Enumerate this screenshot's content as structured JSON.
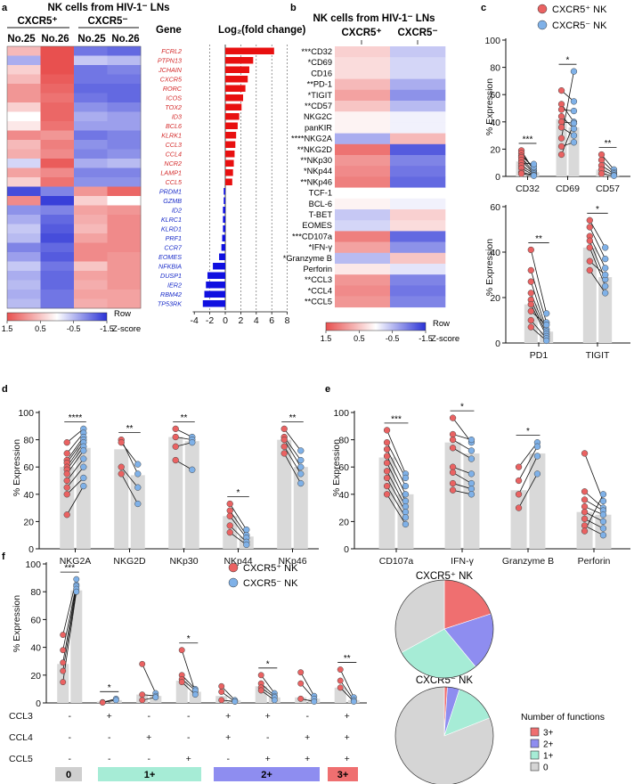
{
  "colors": {
    "red": "#e8504f",
    "blue": "#2a32d6",
    "dot_red": "#ea6262",
    "dot_blue": "#7fb1e8",
    "bar": "#d9d9d9",
    "f3": "#ef6f70",
    "f2": "#8e8df0",
    "f1": "#a6ecd6",
    "f0": "#d5d5d5"
  },
  "panel_a": {
    "label": "a",
    "title": "NK cells from HIV-1⁻ LNs",
    "groups": [
      "CXCR5⁺",
      "CXCR5⁻"
    ],
    "samples": [
      "No.25",
      "No.26",
      "No.25",
      "No.26"
    ],
    "gene_header": "Gene",
    "fc_header": "Log₂(fold change)",
    "genes": [
      "FCRL2",
      "PTPN13",
      "JCHAIN",
      "CXCR5",
      "RORC",
      "ICOS",
      "TOX2",
      "ID3",
      "BCL6",
      "KLRK1",
      "CCL3",
      "CCL4",
      "NCR2",
      "LAMP1",
      "CCL5",
      "PRDM1",
      "GZMB",
      "ID2",
      "KLRC1",
      "KLRD1",
      "PRF1",
      "CCR7",
      "EOMES",
      "NFKBIA",
      "DUSP1",
      "IER2",
      "RBM42",
      "TP53RK"
    ],
    "heatmap": [
      [
        0.6,
        1.5,
        -1.0,
        -1.1
      ],
      [
        -0.6,
        1.5,
        -0.4,
        -0.5
      ],
      [
        0.4,
        1.5,
        -1.0,
        -0.9
      ],
      [
        0.6,
        1.4,
        -1.0,
        -1.0
      ],
      [
        0.9,
        1.3,
        -1.1,
        -1.1
      ],
      [
        0.9,
        1.2,
        -1.0,
        -1.1
      ],
      [
        0.4,
        1.3,
        -0.8,
        -0.9
      ],
      [
        0.0,
        1.3,
        -0.6,
        -0.7
      ],
      [
        0.2,
        1.2,
        -0.7,
        -0.7
      ],
      [
        1.0,
        0.9,
        -1.0,
        -0.9
      ],
      [
        0.6,
        1.1,
        -0.8,
        -0.9
      ],
      [
        0.7,
        1.0,
        -0.9,
        -0.8
      ],
      [
        -0.3,
        1.4,
        -0.6,
        -0.5
      ],
      [
        0.8,
        1.0,
        -0.9,
        -0.9
      ],
      [
        0.4,
        1.2,
        -0.8,
        -0.8
      ],
      [
        -1.3,
        -0.9,
        0.9,
        1.3
      ],
      [
        1.0,
        -1.4,
        0.4,
        0.0
      ],
      [
        -0.8,
        -0.9,
        0.8,
        0.9
      ],
      [
        -0.6,
        -1.1,
        0.7,
        1.0
      ],
      [
        -0.4,
        -1.2,
        0.6,
        1.0
      ],
      [
        -0.5,
        -1.3,
        0.8,
        1.0
      ],
      [
        -0.9,
        -1.1,
        1.0,
        1.0
      ],
      [
        -0.7,
        -1.2,
        1.0,
        0.9
      ],
      [
        -0.4,
        -1.0,
        0.5,
        0.9
      ],
      [
        -0.6,
        -1.1,
        0.8,
        0.9
      ],
      [
        -0.5,
        -1.1,
        0.7,
        0.9
      ],
      [
        -0.6,
        -1.0,
        0.8,
        0.8
      ],
      [
        -0.5,
        -1.0,
        0.7,
        0.8
      ]
    ],
    "log2fc": [
      6.3,
      3.6,
      3.1,
      2.9,
      2.6,
      2.3,
      2.1,
      1.8,
      1.6,
      1.4,
      1.3,
      1.2,
      1.1,
      1.0,
      0.9,
      -0.2,
      -0.2,
      -0.3,
      -0.3,
      -0.3,
      -0.4,
      -0.5,
      -0.8,
      -1.6,
      -2.3,
      -2.5,
      -2.7,
      -2.9
    ],
    "axis_ticks": [
      "-4",
      "-2",
      "0",
      "2",
      "4",
      "6",
      "8"
    ],
    "legend_ticks": [
      "1.5",
      "0.5",
      "-0.5",
      "-1.5"
    ],
    "legend_label": [
      "Row",
      "Z-score"
    ]
  },
  "panel_b": {
    "label": "b",
    "title": "NK cells from HIV-1⁻ LNs",
    "groups": [
      "CXCR5⁺",
      "CXCR5⁻"
    ],
    "markers": [
      "***CD32",
      "*CD69",
      "CD16",
      "**PD-1",
      "*TIGIT",
      "**CD57",
      "NKG2C",
      "panKIR",
      "****NKG2A",
      "**NKG2D",
      "**NKp30",
      "*NKp44",
      "**NKp46",
      "TCF-1",
      "BCL-6",
      "T-BET",
      "EOMES",
      "***CD107a",
      "*IFN-γ",
      "*Granzyme B",
      "Perforin",
      "**CCL3",
      "*CCL4",
      "**CCL5"
    ],
    "heatmap": [
      [
        0.4,
        -0.4
      ],
      [
        0.3,
        -0.3
      ],
      [
        0.3,
        -0.3
      ],
      [
        0.6,
        -0.6
      ],
      [
        0.8,
        -0.8
      ],
      [
        0.5,
        -0.5
      ],
      [
        0.1,
        -0.1
      ],
      [
        0.1,
        -0.1
      ],
      [
        -0.6,
        0.6
      ],
      [
        1.2,
        -1.2
      ],
      [
        0.9,
        -0.9
      ],
      [
        1.0,
        -1.0
      ],
      [
        1.1,
        -1.1
      ],
      [
        0.0,
        0.0
      ],
      [
        0.1,
        -0.1
      ],
      [
        -0.4,
        0.4
      ],
      [
        -0.3,
        0.3
      ],
      [
        1.1,
        -1.1
      ],
      [
        0.8,
        -0.8
      ],
      [
        -0.5,
        0.5
      ],
      [
        0.2,
        -0.2
      ],
      [
        0.9,
        -0.9
      ],
      [
        1.0,
        -1.0
      ],
      [
        0.9,
        -0.9
      ]
    ],
    "legend_ticks": [
      "1.5",
      "0.5",
      "-0.5",
      "-1.5"
    ],
    "legend_label": [
      "Row",
      "Z-score"
    ]
  },
  "panel_c": {
    "label": "c",
    "legend": [
      "CXCR5⁺ NK",
      "CXCR5⁻ NK"
    ],
    "ylabel": "% Expression"
  },
  "panel_d": {
    "label": "d",
    "ylabel": "% Expression"
  },
  "panel_e": {
    "label": "e",
    "ylabel": "% Expression"
  },
  "panel_f": {
    "label": "f",
    "ylabel": "% Expression",
    "legend": [
      "CXCR5⁺ NK",
      "CXCR5⁻ NK"
    ],
    "row_labels": [
      "CCL3",
      "CCL4",
      "CCL5"
    ],
    "combos": [
      [
        "-",
        "-",
        "-"
      ],
      [
        "+",
        "-",
        "-"
      ],
      [
        "-",
        "+",
        "-"
      ],
      [
        "-",
        "-",
        "+"
      ],
      [
        "+",
        "+",
        "-"
      ],
      [
        "+",
        "-",
        "+"
      ],
      [
        "-",
        "+",
        "+"
      ],
      [
        "+",
        "+",
        "+"
      ]
    ],
    "groups": [
      "0",
      "1+",
      "2+",
      "3+"
    ],
    "pie_titles": [
      "CXCR5⁺ NK",
      "CXCR5⁻ NK"
    ],
    "pie_legend_title": "Number of functions",
    "pie_legend": [
      "3+",
      "2+",
      "1+",
      "0"
    ]
  },
  "chart_data": [
    {
      "type": "bar",
      "title": "c: CD32 / CD69 / CD57",
      "categories": [
        "CD32",
        "CD69",
        "CD57"
      ],
      "ylabel": "% Expression",
      "ylim": [
        0,
        100
      ],
      "yticks": [
        "0",
        "20",
        "40",
        "60",
        "80",
        "100"
      ],
      "significance": [
        "***",
        "*",
        "**"
      ],
      "series": [
        {
          "name": "CXCR5⁺ NK",
          "values": [
            11,
            42,
            5
          ]
        },
        {
          "name": "CXCR5⁻ NK",
          "values": [
            3,
            36,
            1
          ]
        }
      ],
      "pairs": [
        [
          [
            19,
            4
          ],
          [
            17,
            5
          ],
          [
            15,
            7
          ],
          [
            14,
            3
          ],
          [
            12,
            2
          ],
          [
            10,
            9
          ],
          [
            8,
            2
          ],
          [
            6,
            1
          ],
          [
            3,
            1
          ],
          [
            2,
            0.5
          ]
        ],
        [
          [
            63,
            55
          ],
          [
            53,
            40
          ],
          [
            49,
            48
          ],
          [
            44,
            35
          ],
          [
            40,
            39
          ],
          [
            36,
            30
          ],
          [
            28,
            77
          ],
          [
            22,
            25
          ],
          [
            16,
            39
          ]
        ],
        [
          [
            16,
            5
          ],
          [
            12,
            3
          ],
          [
            8,
            2
          ],
          [
            5,
            1
          ],
          [
            2,
            0.5
          ]
        ]
      ]
    },
    {
      "type": "bar",
      "title": "c: PD1 / TIGIT",
      "categories": [
        "PD1",
        "TIGIT"
      ],
      "ylabel": "% Expression",
      "ylim": [
        0,
        60
      ],
      "yticks": [
        "0",
        "20",
        "40",
        "60"
      ],
      "significance": [
        "**",
        "*"
      ],
      "series": [
        {
          "name": "CXCR5⁺ NK",
          "values": [
            17,
            42
          ]
        },
        {
          "name": "CXCR5⁻ NK",
          "values": [
            5,
            29
          ]
        }
      ],
      "pairs": [
        [
          [
            41,
            13
          ],
          [
            32,
            9
          ],
          [
            27,
            6
          ],
          [
            22,
            5
          ],
          [
            19,
            4
          ],
          [
            17,
            3
          ],
          [
            14,
            8
          ],
          [
            10,
            2
          ],
          [
            7,
            1
          ]
        ],
        [
          [
            54,
            42
          ],
          [
            51,
            37
          ],
          [
            47,
            33
          ],
          [
            45,
            28
          ],
          [
            42,
            25
          ],
          [
            36,
            30
          ],
          [
            32,
            22
          ]
        ]
      ]
    },
    {
      "type": "bar",
      "title": "d",
      "categories": [
        "NKG2A",
        "NKG2D",
        "NKp30",
        "NKp44",
        "NKp46"
      ],
      "ylabel": "% Expression",
      "ylim": [
        0,
        100
      ],
      "yticks": [
        "0",
        "20",
        "40",
        "60",
        "80",
        "100"
      ],
      "significance": [
        "****",
        "**",
        "**",
        "*",
        "**"
      ],
      "series": [
        {
          "name": "CXCR5⁺ NK",
          "values": [
            60,
            73,
            82,
            24,
            80
          ]
        },
        {
          "name": "CXCR5⁻ NK",
          "values": [
            74,
            54,
            79,
            9,
            60
          ]
        }
      ],
      "pairs": [
        [
          [
            78,
            88
          ],
          [
            70,
            85
          ],
          [
            65,
            82
          ],
          [
            63,
            80
          ],
          [
            60,
            78
          ],
          [
            58,
            75
          ],
          [
            55,
            72
          ],
          [
            50,
            66
          ],
          [
            45,
            60
          ],
          [
            40,
            52
          ],
          [
            25,
            46
          ]
        ],
        [
          [
            80,
            55
          ],
          [
            78,
            62
          ],
          [
            60,
            45
          ],
          [
            55,
            33
          ]
        ],
        [
          [
            88,
            82
          ],
          [
            82,
            80
          ],
          [
            75,
            78
          ],
          [
            65,
            58
          ]
        ],
        [
          [
            33,
            14
          ],
          [
            28,
            10
          ],
          [
            24,
            8
          ],
          [
            17,
            5
          ],
          [
            12,
            3
          ]
        ],
        [
          [
            88,
            72
          ],
          [
            82,
            65
          ],
          [
            80,
            60
          ],
          [
            75,
            55
          ],
          [
            70,
            48
          ]
        ]
      ]
    },
    {
      "type": "bar",
      "title": "e",
      "categories": [
        "CD107a",
        "IFN-γ",
        "Granzyme B",
        "Perforin"
      ],
      "ylabel": "% Expression",
      "ylim": [
        0,
        100
      ],
      "yticks": [
        "0",
        "20",
        "40",
        "60",
        "80",
        "100"
      ],
      "significance": [
        "***",
        "*",
        "*",
        ""
      ],
      "series": [
        {
          "name": "CXCR5⁺ NK",
          "values": [
            67,
            78,
            43,
            27
          ]
        },
        {
          "name": "CXCR5⁻ NK",
          "values": [
            40,
            70,
            70,
            25
          ]
        }
      ],
      "pairs": [
        [
          [
            87,
            55
          ],
          [
            78,
            52
          ],
          [
            73,
            46
          ],
          [
            68,
            40
          ],
          [
            63,
            35
          ],
          [
            57,
            31
          ],
          [
            52,
            27
          ],
          [
            46,
            23
          ],
          [
            40,
            18
          ]
        ],
        [
          [
            96,
            78
          ],
          [
            84,
            80
          ],
          [
            80,
            72
          ],
          [
            74,
            66
          ],
          [
            60,
            55
          ],
          [
            56,
            48
          ],
          [
            48,
            44
          ],
          [
            43,
            40
          ]
        ],
        [
          [
            60,
            78
          ],
          [
            50,
            75
          ],
          [
            40,
            68
          ],
          [
            30,
            55
          ]
        ],
        [
          [
            70,
            35
          ],
          [
            42,
            30
          ],
          [
            36,
            28
          ],
          [
            31,
            25
          ],
          [
            27,
            20
          ],
          [
            22,
            15
          ],
          [
            17,
            10
          ],
          [
            13,
            40
          ]
        ]
      ]
    },
    {
      "type": "bar",
      "title": "f",
      "categories": [
        "0",
        "CCL3",
        "CCL4",
        "CCL5",
        "CCL3+CCL4",
        "CCL3+CCL5",
        "CCL4+CCL5",
        "CCL3+CCL4+CCL5"
      ],
      "ylabel": "% Expression",
      "ylim": [
        0,
        100
      ],
      "yticks": [
        "0",
        "20",
        "40",
        "60",
        "80",
        "100"
      ],
      "significance": [
        "***",
        "*",
        "",
        "*",
        "",
        "*",
        "",
        "**"
      ],
      "series": [
        {
          "name": "CXCR5⁺ NK",
          "values": [
            28,
            1,
            6,
            16,
            5,
            12,
            4,
            11
          ]
        },
        {
          "name": "CXCR5⁻ NK",
          "values": [
            81,
            2,
            5,
            8,
            2,
            4,
            3,
            2
          ]
        }
      ],
      "pairs": [
        [
          [
            49,
            89
          ],
          [
            38,
            85
          ],
          [
            29,
            84
          ],
          [
            23,
            82
          ],
          [
            15,
            80
          ]
        ],
        [
          [
            0.5,
            3
          ],
          [
            0.3,
            2
          ]
        ],
        [
          [
            28,
            7
          ],
          [
            6,
            5
          ],
          [
            2,
            4
          ]
        ],
        [
          [
            38,
            8
          ],
          [
            20,
            10
          ],
          [
            17,
            9
          ],
          [
            15,
            6
          ]
        ],
        [
          [
            12,
            2
          ],
          [
            8,
            1
          ],
          [
            2,
            1
          ]
        ],
        [
          [
            20,
            7
          ],
          [
            14,
            5
          ],
          [
            11,
            4
          ],
          [
            9,
            2
          ]
        ],
        [
          [
            22,
            5
          ],
          [
            14,
            3
          ],
          [
            3,
            1
          ]
        ],
        [
          [
            24,
            4
          ],
          [
            16,
            2
          ],
          [
            11,
            1
          ]
        ]
      ]
    },
    {
      "type": "pie",
      "title": "CXCR5⁺ NK",
      "categories": [
        "3+",
        "2+",
        "1+",
        "0"
      ],
      "values": [
        20,
        19,
        28,
        33
      ]
    },
    {
      "type": "pie",
      "title": "CXCR5⁻ NK",
      "categories": [
        "3+",
        "2+",
        "1+",
        "0"
      ],
      "values": [
        1,
        4,
        14,
        81
      ]
    }
  ]
}
